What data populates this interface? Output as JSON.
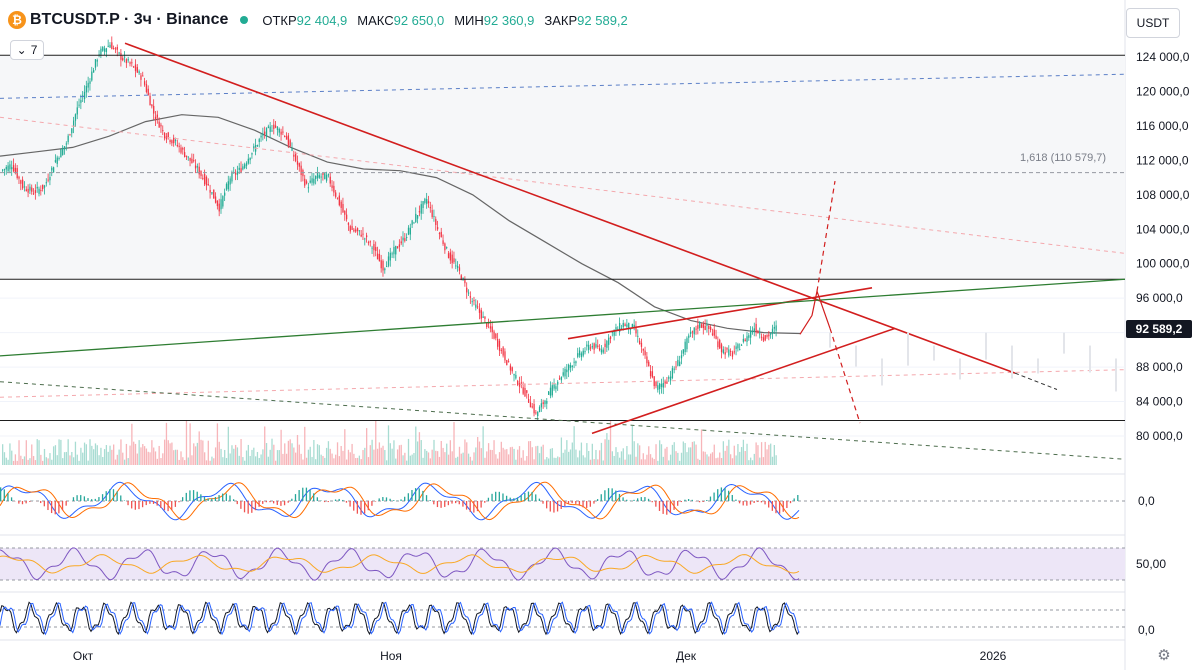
{
  "header": {
    "symbol": "BTCUSDT.P · 3ч · Binance",
    "logo_glyph": "₿",
    "open_label": "ОТКР",
    "open_value": "92 404,9",
    "high_label": "МАКС",
    "high_value": "92 650,0",
    "low_label": "МИН",
    "low_value": "92 360,9",
    "close_label": "ЗАКР",
    "close_value": "92 589,2",
    "indicator_count": "7",
    "indicator_toggle_glyph": "⌄"
  },
  "currency": "USDT",
  "last_price_label": "92 589,2",
  "fib_label": "1,618 (110 579,7)",
  "settings_glyph": "⚙",
  "colors": {
    "up": "#22ab94",
    "down": "#f23645",
    "trend": "#d21e1e",
    "ma": "#666666",
    "green_line": "#2e7d32",
    "blue_dash": "#5b7fc7",
    "rsi_band": "#ede6f7"
  },
  "chart_data": {
    "type": "candlestick",
    "price_axis": {
      "ticks": [
        "124 000,0",
        "120 000,0",
        "116 000,0",
        "112 000,0",
        "108 000,0",
        "104 000,0",
        "100 000,0",
        "96 000,0",
        "92 000,0",
        "88 000,0",
        "84 000,0",
        "80 000,0"
      ],
      "range": [
        78000,
        126000
      ]
    },
    "time_axis": [
      "Окт",
      "Ноя",
      "Дек",
      "2026"
    ],
    "path": [
      110800,
      111500,
      109000,
      108300,
      109000,
      112000,
      114000,
      118000,
      121000,
      124500,
      125500,
      124000,
      123000,
      121500,
      117500,
      115000,
      114000,
      112500,
      111000,
      109000,
      106500,
      110000,
      111000,
      113000,
      115000,
      116000,
      115000,
      112000,
      109000,
      110200,
      110000,
      107000,
      104000,
      103500,
      102000,
      99500,
      101500,
      103000,
      105500,
      107500,
      104000,
      101000,
      99000,
      96000,
      94000,
      92000,
      89500,
      87000,
      85000,
      82500,
      84500,
      86500,
      88000,
      89500,
      90500,
      90000,
      92000,
      93000,
      92500,
      89000,
      85500,
      86500,
      88500,
      91500,
      93000,
      92300,
      90000,
      89500,
      91000,
      92600,
      91300,
      92600
    ],
    "moving_average": [
      112500,
      113000,
      113500,
      114800,
      116500,
      117300,
      117000,
      115500,
      113500,
      111800,
      111000,
      110800,
      110000,
      108000,
      105000,
      102500,
      100000,
      97800,
      95000,
      93400,
      92500,
      92000,
      91900
    ],
    "levels": [
      124200,
      98200,
      81800
    ],
    "fib_level": 110579.7,
    "trendlines": [
      {
        "name": "main-downtrend",
        "from": [
          125600
        ],
        "to": [
          87300
        ]
      },
      {
        "name": "pennant-upper",
        "from": [
          91300
        ],
        "to": [
          97200
        ]
      },
      {
        "name": "pennant-lower",
        "from": [
          80300
        ],
        "to": [
          92500
        ]
      },
      {
        "name": "green-support",
        "from": [
          89300
        ],
        "to": [
          98200
        ]
      }
    ],
    "indicators": {
      "macd_zero_label": "0,0",
      "rsi_mid_label": "50,00",
      "stoch_zero_label": "0,0"
    }
  }
}
